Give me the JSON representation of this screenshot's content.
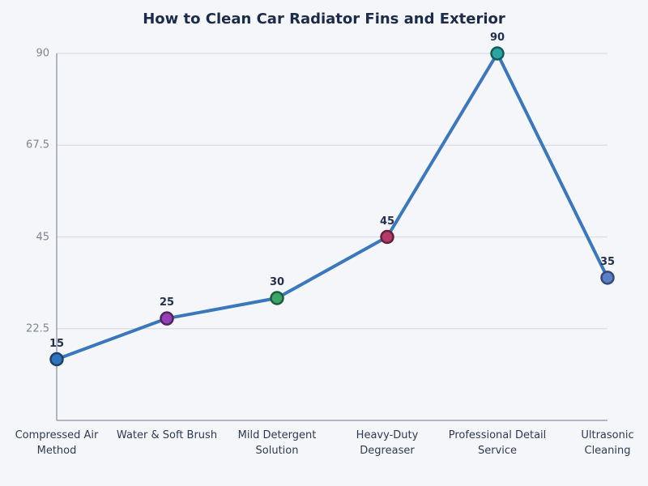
{
  "figure": {
    "background": "#f4f6fa"
  },
  "chart_data": {
    "type": "line",
    "title": "How to Clean Car Radiator Fins and Exterior",
    "categories": [
      "Compressed Air\nMethod",
      "Water & Soft Brush",
      "Mild Detergent\nSolution",
      "Heavy-Duty\nDegreaser",
      "Professional Detail\nService",
      "Ultrasonic Cleaning"
    ],
    "values": [
      15,
      25,
      30,
      45,
      90,
      35
    ],
    "value_labels": [
      "15",
      "25",
      "30",
      "45",
      "90",
      "35"
    ],
    "yticks": [
      22.5,
      45,
      67.5,
      90
    ],
    "ytick_labels": [
      "22.5",
      "45",
      "67.5",
      "90"
    ],
    "ylim": [
      0,
      90
    ],
    "xlabel": "",
    "ylabel": "",
    "grid": true,
    "legend": false,
    "line_color": "#3a77bd",
    "point_colors": [
      "#2e75c0",
      "#9440b5",
      "#3ba56a",
      "#b53a66",
      "#2aa5a2",
      "#5b7fc4"
    ],
    "point_border_colors": [
      "#1d4066",
      "#50225f",
      "#1f5b39",
      "#63203a",
      "#175b59",
      "#334a74"
    ]
  },
  "colors": {
    "title": "#1c2b4a",
    "grid": "#d9dde6",
    "spine": "#9aa1af",
    "ytick_label": "#7e8593",
    "xtick_label": "#303a52",
    "value_label": "#24304e"
  }
}
